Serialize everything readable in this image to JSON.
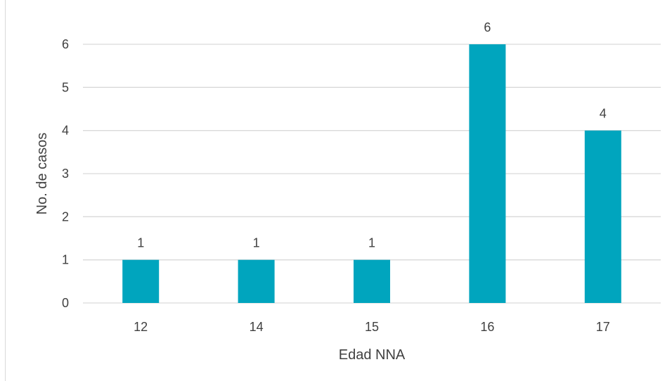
{
  "chart_data": {
    "type": "bar",
    "categories": [
      "12",
      "14",
      "15",
      "16",
      "17"
    ],
    "values": [
      1,
      1,
      1,
      6,
      4
    ],
    "data_labels": [
      "1",
      "1",
      "1",
      "6",
      "4"
    ],
    "xlabel": "Edad NNA",
    "ylabel": "No. de casos",
    "ylim": [
      0,
      6
    ],
    "yticks": [
      0,
      1,
      2,
      3,
      4,
      5,
      6
    ],
    "grid": true,
    "legend": "none",
    "colors": {
      "bar": "#00A5BE",
      "grid": "#d9d9d9",
      "text": "#404040"
    }
  }
}
